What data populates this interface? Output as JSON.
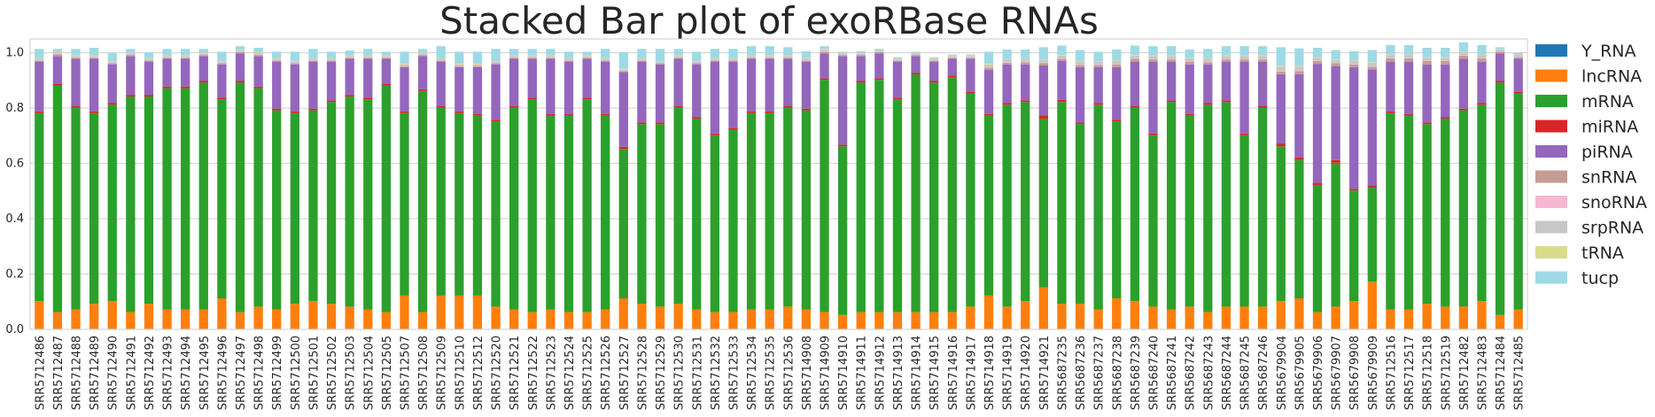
{
  "chart_data": {
    "type": "bar",
    "stacked": true,
    "title": "Stacked Bar plot of exoRBase RNAs",
    "xlabel": "",
    "ylabel": "",
    "ylim": [
      0,
      1.05
    ],
    "yticks": [
      0.0,
      0.2,
      0.4,
      0.6,
      0.8,
      1.0
    ],
    "ytick_labels": [
      "0.0",
      "0.2",
      "0.4",
      "0.6",
      "0.8",
      "1.0"
    ],
    "grid": true,
    "legend_position": "right",
    "categories": [
      "SRR5712486",
      "SRR5712487",
      "SRR5712488",
      "SRR5712489",
      "SRR5712490",
      "SRR5712491",
      "SRR5712492",
      "SRR5712493",
      "SRR5712494",
      "SRR5712495",
      "SRR5712496",
      "SRR5712497",
      "SRR5712498",
      "SRR5712499",
      "SRR5712500",
      "SRR5712501",
      "SRR5712502",
      "SRR5712503",
      "SRR5712504",
      "SRR5712505",
      "SRR5712507",
      "SRR5712508",
      "SRR5712509",
      "SRR5712510",
      "SRR5712512",
      "SRR5712520",
      "SRR5712521",
      "SRR5712522",
      "SRR5712523",
      "SRR5712524",
      "SRR5712525",
      "SRR5712526",
      "SRR5712527",
      "SRR5712528",
      "SRR5712529",
      "SRR5712530",
      "SRR5712531",
      "SRR5712532",
      "SRR5712533",
      "SRR5712534",
      "SRR5712535",
      "SRR5712536",
      "SRR5714908",
      "SRR5714909",
      "SRR5714910",
      "SRR5714911",
      "SRR5714912",
      "SRR5714913",
      "SRR5714914",
      "SRR5714915",
      "SRR5714916",
      "SRR5714917",
      "SRR5714918",
      "SRR5714919",
      "SRR5714920",
      "SRR5714921",
      "SRR5687235",
      "SRR5687236",
      "SRR5687237",
      "SRR5687238",
      "SRR5687239",
      "SRR5687240",
      "SRR5687241",
      "SRR5687242",
      "SRR5687243",
      "SRR5687244",
      "SRR5687245",
      "SRR5687246",
      "SRR5679904",
      "SRR5679905",
      "SRR5679906",
      "SRR5679907",
      "SRR5679908",
      "SRR5679909",
      "SRR5712516",
      "SRR5712517",
      "SRR5712518",
      "SRR5712519",
      "SRR5712482",
      "SRR5712483",
      "SRR5712484",
      "SRR5712485"
    ],
    "series": [
      {
        "name": "Y_RNA",
        "color": "#1f77b4",
        "values": [
          0.002,
          0.002,
          0.002,
          0.002,
          0.002,
          0.002,
          0.002,
          0.002,
          0.002,
          0.002,
          0.002,
          0.002,
          0.002,
          0.002,
          0.002,
          0.002,
          0.002,
          0.002,
          0.002,
          0.002,
          0.002,
          0.002,
          0.002,
          0.002,
          0.002,
          0.002,
          0.002,
          0.002,
          0.002,
          0.002,
          0.002,
          0.002,
          0.002,
          0.002,
          0.002,
          0.002,
          0.002,
          0.002,
          0.002,
          0.002,
          0.002,
          0.002,
          0.002,
          0.002,
          0.002,
          0.002,
          0.002,
          0.002,
          0.002,
          0.002,
          0.002,
          0.002,
          0.002,
          0.002,
          0.002,
          0.002,
          0.002,
          0.002,
          0.002,
          0.002,
          0.002,
          0.002,
          0.002,
          0.002,
          0.002,
          0.002,
          0.002,
          0.002,
          0.002,
          0.002,
          0.002,
          0.002,
          0.002,
          0.002,
          0.002,
          0.002,
          0.002,
          0.002,
          0.002,
          0.002,
          0.002,
          0.002
        ]
      },
      {
        "name": "lncRNA",
        "color": "#ff7f0e",
        "values": [
          0.1,
          0.06,
          0.07,
          0.09,
          0.1,
          0.06,
          0.09,
          0.07,
          0.07,
          0.07,
          0.11,
          0.06,
          0.08,
          0.07,
          0.09,
          0.1,
          0.09,
          0.08,
          0.07,
          0.06,
          0.12,
          0.06,
          0.12,
          0.12,
          0.12,
          0.08,
          0.07,
          0.06,
          0.07,
          0.06,
          0.06,
          0.07,
          0.11,
          0.09,
          0.08,
          0.09,
          0.07,
          0.06,
          0.06,
          0.07,
          0.07,
          0.08,
          0.07,
          0.06,
          0.05,
          0.06,
          0.06,
          0.06,
          0.06,
          0.06,
          0.06,
          0.08,
          0.12,
          0.08,
          0.1,
          0.15,
          0.09,
          0.09,
          0.07,
          0.11,
          0.1,
          0.08,
          0.07,
          0.08,
          0.06,
          0.08,
          0.08,
          0.08,
          0.1,
          0.11,
          0.06,
          0.08,
          0.1,
          0.17,
          0.07,
          0.07,
          0.09,
          0.08,
          0.08,
          0.1,
          0.05,
          0.07
        ]
      },
      {
        "name": "mRNA",
        "color": "#2ca02c",
        "values": [
          0.68,
          0.82,
          0.73,
          0.69,
          0.71,
          0.78,
          0.75,
          0.8,
          0.8,
          0.82,
          0.72,
          0.83,
          0.79,
          0.72,
          0.69,
          0.69,
          0.73,
          0.76,
          0.76,
          0.82,
          0.66,
          0.8,
          0.68,
          0.66,
          0.65,
          0.67,
          0.73,
          0.77,
          0.7,
          0.71,
          0.77,
          0.7,
          0.54,
          0.65,
          0.66,
          0.71,
          0.69,
          0.64,
          0.66,
          0.71,
          0.71,
          0.72,
          0.72,
          0.84,
          0.61,
          0.83,
          0.84,
          0.77,
          0.86,
          0.83,
          0.85,
          0.77,
          0.65,
          0.73,
          0.72,
          0.61,
          0.73,
          0.65,
          0.74,
          0.64,
          0.7,
          0.62,
          0.75,
          0.69,
          0.75,
          0.74,
          0.62,
          0.72,
          0.56,
          0.5,
          0.46,
          0.52,
          0.4,
          0.34,
          0.71,
          0.7,
          0.65,
          0.68,
          0.71,
          0.71,
          0.84,
          0.78
        ]
      },
      {
        "name": "miRNA",
        "color": "#d62728",
        "values": [
          0.006,
          0.006,
          0.006,
          0.006,
          0.006,
          0.006,
          0.006,
          0.006,
          0.006,
          0.006,
          0.006,
          0.006,
          0.006,
          0.006,
          0.006,
          0.006,
          0.006,
          0.006,
          0.006,
          0.006,
          0.006,
          0.006,
          0.006,
          0.006,
          0.006,
          0.006,
          0.006,
          0.006,
          0.006,
          0.006,
          0.006,
          0.006,
          0.008,
          0.006,
          0.006,
          0.006,
          0.006,
          0.006,
          0.006,
          0.006,
          0.006,
          0.006,
          0.006,
          0.006,
          0.006,
          0.006,
          0.006,
          0.006,
          0.006,
          0.006,
          0.006,
          0.006,
          0.006,
          0.006,
          0.006,
          0.012,
          0.008,
          0.006,
          0.006,
          0.006,
          0.006,
          0.006,
          0.006,
          0.006,
          0.006,
          0.006,
          0.006,
          0.006,
          0.01,
          0.01,
          0.008,
          0.01,
          0.006,
          0.008,
          0.006,
          0.006,
          0.006,
          0.006,
          0.006,
          0.006,
          0.006,
          0.006
        ]
      },
      {
        "name": "piRNA",
        "color": "#9467bd",
        "values": [
          0.18,
          0.1,
          0.17,
          0.19,
          0.14,
          0.14,
          0.12,
          0.1,
          0.1,
          0.09,
          0.12,
          0.1,
          0.11,
          0.17,
          0.17,
          0.17,
          0.14,
          0.13,
          0.14,
          0.09,
          0.16,
          0.12,
          0.16,
          0.16,
          0.17,
          0.2,
          0.17,
          0.14,
          0.2,
          0.19,
          0.14,
          0.19,
          0.27,
          0.22,
          0.21,
          0.17,
          0.19,
          0.26,
          0.24,
          0.19,
          0.19,
          0.17,
          0.17,
          0.09,
          0.32,
          0.09,
          0.09,
          0.13,
          0.06,
          0.07,
          0.06,
          0.12,
          0.16,
          0.14,
          0.13,
          0.18,
          0.14,
          0.2,
          0.13,
          0.19,
          0.16,
          0.26,
          0.14,
          0.18,
          0.14,
          0.14,
          0.26,
          0.16,
          0.25,
          0.3,
          0.43,
          0.34,
          0.44,
          0.42,
          0.18,
          0.19,
          0.21,
          0.19,
          0.18,
          0.15,
          0.1,
          0.12
        ]
      },
      {
        "name": "snRNA",
        "color": "#c49c94",
        "values": [
          0.004,
          0.006,
          0.004,
          0.004,
          0.004,
          0.004,
          0.004,
          0.004,
          0.004,
          0.004,
          0.004,
          0.004,
          0.004,
          0.004,
          0.004,
          0.004,
          0.004,
          0.004,
          0.004,
          0.004,
          0.004,
          0.004,
          0.004,
          0.004,
          0.004,
          0.004,
          0.004,
          0.004,
          0.004,
          0.004,
          0.004,
          0.004,
          0.004,
          0.004,
          0.004,
          0.004,
          0.004,
          0.004,
          0.004,
          0.004,
          0.004,
          0.004,
          0.004,
          0.006,
          0.004,
          0.004,
          0.004,
          0.004,
          0.004,
          0.004,
          0.004,
          0.004,
          0.008,
          0.006,
          0.008,
          0.008,
          0.008,
          0.008,
          0.008,
          0.01,
          0.01,
          0.008,
          0.008,
          0.01,
          0.008,
          0.008,
          0.008,
          0.008,
          0.01,
          0.012,
          0.01,
          0.01,
          0.01,
          0.01,
          0.012,
          0.012,
          0.012,
          0.012,
          0.012,
          0.012,
          0.006,
          0.006
        ]
      },
      {
        "name": "snoRNA",
        "color": "#f7b6d2",
        "values": [
          0.002,
          0.002,
          0.002,
          0.002,
          0.002,
          0.002,
          0.002,
          0.002,
          0.002,
          0.002,
          0.002,
          0.002,
          0.002,
          0.002,
          0.002,
          0.002,
          0.002,
          0.002,
          0.002,
          0.002,
          0.002,
          0.002,
          0.002,
          0.002,
          0.002,
          0.002,
          0.002,
          0.002,
          0.002,
          0.002,
          0.002,
          0.002,
          0.002,
          0.002,
          0.002,
          0.002,
          0.002,
          0.002,
          0.002,
          0.002,
          0.002,
          0.002,
          0.002,
          0.002,
          0.002,
          0.002,
          0.002,
          0.002,
          0.002,
          0.002,
          0.002,
          0.002,
          0.002,
          0.002,
          0.002,
          0.002,
          0.002,
          0.002,
          0.002,
          0.002,
          0.002,
          0.002,
          0.002,
          0.002,
          0.002,
          0.002,
          0.002,
          0.002,
          0.004,
          0.004,
          0.002,
          0.002,
          0.002,
          0.002,
          0.002,
          0.002,
          0.002,
          0.002,
          0.002,
          0.002,
          0.002,
          0.002
        ]
      },
      {
        "name": "srpRNA",
        "color": "#c7c7c7",
        "values": [
          0.004,
          0.004,
          0.004,
          0.004,
          0.004,
          0.004,
          0.004,
          0.004,
          0.004,
          0.004,
          0.004,
          0.004,
          0.006,
          0.004,
          0.004,
          0.004,
          0.004,
          0.004,
          0.004,
          0.004,
          0.004,
          0.004,
          0.004,
          0.004,
          0.004,
          0.004,
          0.004,
          0.004,
          0.004,
          0.004,
          0.004,
          0.004,
          0.004,
          0.004,
          0.004,
          0.004,
          0.004,
          0.004,
          0.004,
          0.004,
          0.004,
          0.004,
          0.006,
          0.006,
          0.004,
          0.004,
          0.004,
          0.004,
          0.004,
          0.004,
          0.004,
          0.004,
          0.01,
          0.01,
          0.008,
          0.01,
          0.01,
          0.01,
          0.01,
          0.01,
          0.01,
          0.01,
          0.01,
          0.01,
          0.01,
          0.01,
          0.01,
          0.01,
          0.014,
          0.012,
          0.01,
          0.01,
          0.01,
          0.012,
          0.01,
          0.01,
          0.01,
          0.01,
          0.01,
          0.01,
          0.006,
          0.006
        ]
      },
      {
        "name": "tRNA",
        "color": "#dbdb8d",
        "values": [
          0.002,
          0.002,
          0.002,
          0.002,
          0.002,
          0.002,
          0.002,
          0.002,
          0.002,
          0.002,
          0.002,
          0.002,
          0.002,
          0.002,
          0.002,
          0.002,
          0.002,
          0.002,
          0.002,
          0.002,
          0.002,
          0.002,
          0.002,
          0.002,
          0.002,
          0.002,
          0.002,
          0.002,
          0.002,
          0.002,
          0.002,
          0.002,
          0.002,
          0.002,
          0.002,
          0.002,
          0.002,
          0.002,
          0.002,
          0.002,
          0.002,
          0.002,
          0.002,
          0.002,
          0.002,
          0.002,
          0.002,
          0.002,
          0.002,
          0.002,
          0.002,
          0.002,
          0.002,
          0.002,
          0.002,
          0.002,
          0.002,
          0.002,
          0.002,
          0.002,
          0.002,
          0.002,
          0.002,
          0.002,
          0.002,
          0.002,
          0.002,
          0.002,
          0.004,
          0.004,
          0.002,
          0.002,
          0.002,
          0.002,
          0.002,
          0.002,
          0.002,
          0.002,
          0.002,
          0.002,
          0.002,
          0.002
        ]
      },
      {
        "name": "tucp",
        "color": "#9edae5",
        "values": [
          0.034,
          0.012,
          0.024,
          0.028,
          0.03,
          0.014,
          0.022,
          0.024,
          0.024,
          0.014,
          0.034,
          0.014,
          0.016,
          0.024,
          0.034,
          0.034,
          0.024,
          0.018,
          0.024,
          0.014,
          0.044,
          0.014,
          0.044,
          0.044,
          0.044,
          0.044,
          0.024,
          0.024,
          0.024,
          0.024,
          0.014,
          0.034,
          0.06,
          0.034,
          0.044,
          0.024,
          0.034,
          0.034,
          0.034,
          0.034,
          0.034,
          0.03,
          0.024,
          0.01,
          0.004,
          0.006,
          0.004,
          0.004,
          0.004,
          0.004,
          0.004,
          0.004,
          0.044,
          0.034,
          0.034,
          0.044,
          0.034,
          0.04,
          0.034,
          0.04,
          0.034,
          0.034,
          0.034,
          0.03,
          0.034,
          0.034,
          0.034,
          0.034,
          0.066,
          0.062,
          0.034,
          0.034,
          0.034,
          0.044,
          0.034,
          0.034,
          0.034,
          0.034,
          0.034,
          0.034,
          0.006,
          0.006
        ]
      }
    ]
  }
}
